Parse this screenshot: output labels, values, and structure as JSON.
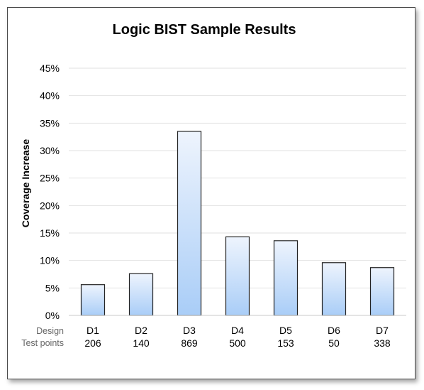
{
  "chart_data": {
    "type": "bar",
    "title": "Logic BIST Sample Results",
    "ylabel": "Coverage Increase",
    "ylim": [
      0,
      45
    ],
    "yticks": [
      0,
      5,
      10,
      15,
      20,
      25,
      30,
      35,
      40,
      45
    ],
    "ytick_labels": [
      "0%",
      "5%",
      "10%",
      "15%",
      "20%",
      "25%",
      "30%",
      "35%",
      "40%",
      "45%"
    ],
    "grid": true,
    "row_labels": [
      "Design",
      "Test points"
    ],
    "categories": [
      "D1",
      "D2",
      "D3",
      "D4",
      "D5",
      "D6",
      "D7"
    ],
    "test_points": [
      "206",
      "140",
      "869",
      "500",
      "153",
      "50",
      "338"
    ],
    "values": [
      5.6,
      7.6,
      33.5,
      14.3,
      13.6,
      9.6,
      8.7
    ],
    "bar_color_top": "#eef4fd",
    "bar_color_bottom": "#a9cdf7"
  }
}
